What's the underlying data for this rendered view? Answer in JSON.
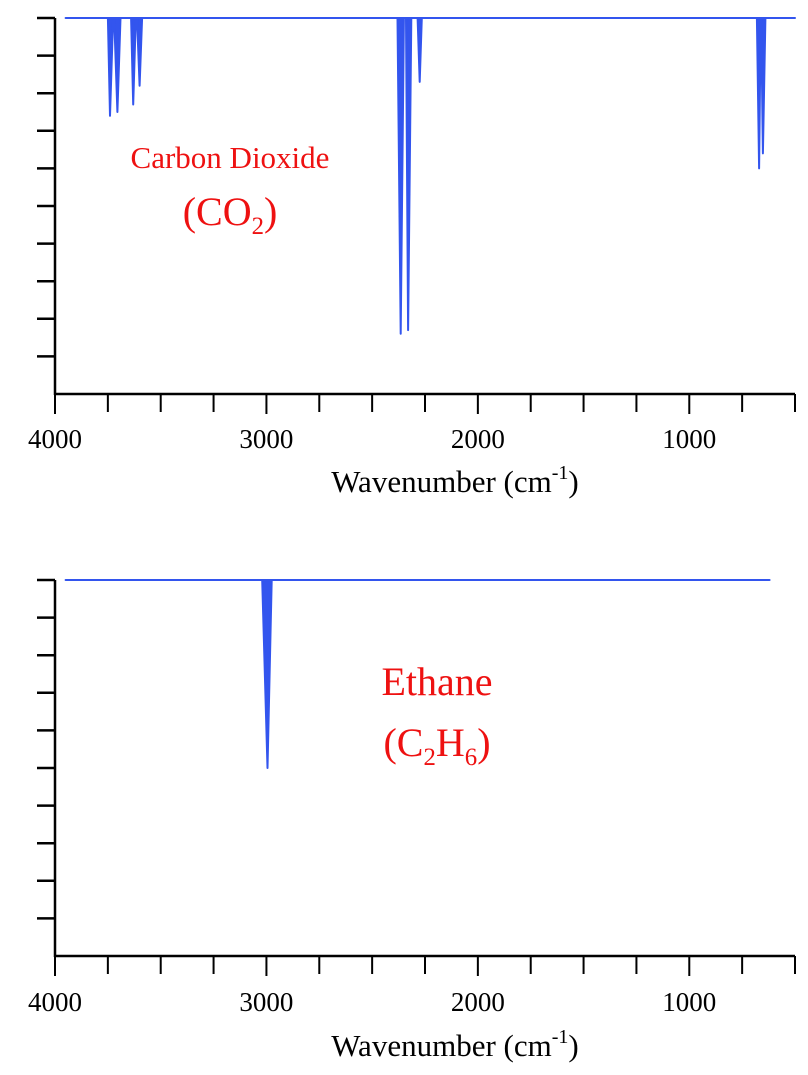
{
  "chart_data": [
    {
      "type": "line",
      "xlabel": {
        "main": "Wavenumber (cm",
        "sup": "-1",
        "tail": ")"
      },
      "xlim": [
        4000,
        500
      ],
      "ylim": [
        0,
        1
      ],
      "x_ticks_major": [
        4000,
        3000,
        2000,
        1000
      ],
      "x_tick_labels": [
        "4000",
        "3000",
        "2000",
        "1000"
      ],
      "x_ticks_minor_step": 250,
      "y_tick_labels": [],
      "y_ticks_count": 10,
      "grid": false,
      "annotation": {
        "line1": "Carbon Dioxide",
        "formula_a": "(CO",
        "formula_sub": "2",
        "formula_b": ")"
      },
      "color": "#3355ee",
      "annotation_color": "#ee1111",
      "series": [
        {
          "points": [
            [
              3950,
              1.0
            ],
            [
              3750,
              1.0
            ],
            [
              3740,
              0.74
            ],
            [
              3725,
              1.0
            ],
            [
              3720,
              1.0
            ],
            [
              3705,
              0.75
            ],
            [
              3690,
              1.0
            ],
            [
              3640,
              1.0
            ],
            [
              3630,
              0.77
            ],
            [
              3618,
              1.0
            ],
            [
              3612,
              1.0
            ],
            [
              3600,
              0.82
            ],
            [
              3588,
              1.0
            ],
            [
              2380,
              1.0
            ],
            [
              2365,
              0.16
            ],
            [
              2350,
              1.0
            ],
            [
              2340,
              1.0
            ],
            [
              2330,
              0.17
            ],
            [
              2315,
              1.0
            ],
            [
              2285,
              1.0
            ],
            [
              2275,
              0.83
            ],
            [
              2265,
              1.0
            ],
            [
              680,
              1.0
            ],
            [
              670,
              0.6
            ],
            [
              662,
              1.0
            ],
            [
              660,
              1.0
            ],
            [
              652,
              0.64
            ],
            [
              640,
              1.0
            ],
            [
              500,
              1.0
            ]
          ]
        }
      ]
    },
    {
      "type": "line",
      "xlabel": {
        "main": "Wavenumber (cm",
        "sup": "-1",
        "tail": ")"
      },
      "xlim": [
        4000,
        500
      ],
      "ylim": [
        0,
        1
      ],
      "x_ticks_major": [
        4000,
        3000,
        2000,
        1000
      ],
      "x_tick_labels": [
        "4000",
        "3000",
        "2000",
        "1000"
      ],
      "x_ticks_minor_step": 250,
      "y_tick_labels": [],
      "y_ticks_count": 10,
      "grid": false,
      "annotation": {
        "line1": "Ethane",
        "formula_a": "(C",
        "formula_sub": "2",
        "formula_mid": "H",
        "formula_sub2": "6",
        "formula_b": ")"
      },
      "color": "#3355ee",
      "annotation_color": "#ee1111",
      "series": [
        {
          "points": [
            [
              3950,
              1.0
            ],
            [
              3020,
              1.0
            ],
            [
              2995,
              0.5
            ],
            [
              2975,
              1.0
            ],
            [
              620,
              1.0
            ]
          ]
        }
      ]
    }
  ]
}
